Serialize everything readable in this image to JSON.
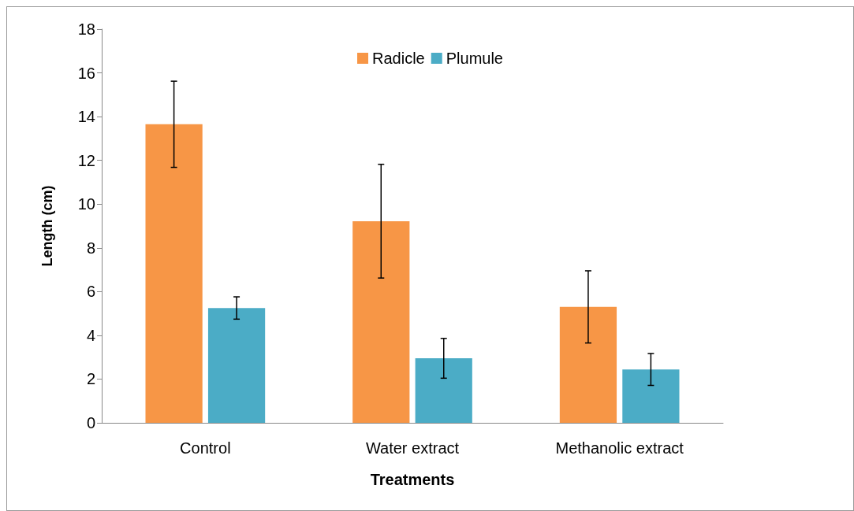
{
  "chart_data": {
    "type": "bar",
    "xlabel": "Treatments",
    "ylabel": "Length (cm)",
    "categories": [
      "Control",
      "Water extract",
      "Methanolic extract"
    ],
    "series": [
      {
        "name": "Radicle",
        "color": "#f79646",
        "values": [
          13.65,
          9.22,
          5.3
        ],
        "errors": [
          1.97,
          2.6,
          1.65
        ]
      },
      {
        "name": "Plumule",
        "color": "#4bacc6",
        "values": [
          5.25,
          2.95,
          2.44
        ],
        "errors": [
          0.51,
          0.91,
          0.73
        ]
      }
    ],
    "ylim": [
      0,
      18
    ],
    "yticks": [
      0,
      2,
      4,
      6,
      8,
      10,
      12,
      14,
      16,
      18
    ],
    "grid": false,
    "legend": "top"
  }
}
